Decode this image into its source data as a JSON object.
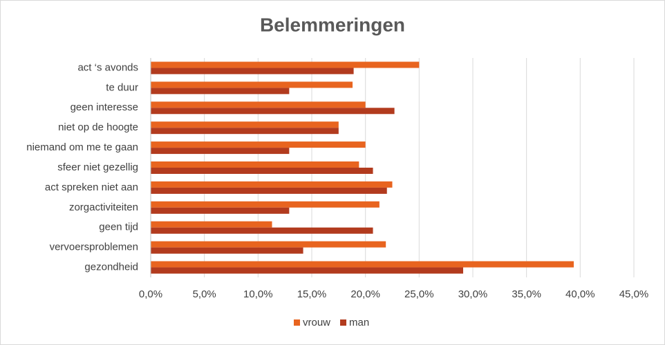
{
  "chart_data": {
    "type": "hbar",
    "title": "Belemmeringen",
    "categories": [
      "act ‘s avonds",
      "te duur",
      "geen interesse",
      "niet op de hoogte",
      "niemand om me te gaan",
      "sfeer niet gezellig",
      "act spreken niet aan",
      "zorgactiviteiten",
      "geen tijd",
      "vervoersproblemen",
      "gezondheid"
    ],
    "series": [
      {
        "name": "vrouw",
        "color": "#e8641f",
        "values": [
          25.0,
          18.8,
          20.0,
          17.5,
          20.0,
          19.4,
          22.5,
          21.3,
          11.3,
          21.9,
          39.4
        ]
      },
      {
        "name": "man",
        "color": "#b23b1e",
        "values": [
          18.9,
          12.9,
          22.7,
          17.5,
          12.9,
          20.7,
          22.0,
          12.9,
          20.7,
          14.2,
          29.1
        ]
      }
    ],
    "xlim": [
      0,
      45
    ],
    "xticks": [
      {
        "value": 0,
        "label": "0,0%"
      },
      {
        "value": 5,
        "label": "5,0%"
      },
      {
        "value": 10,
        "label": "10,0%"
      },
      {
        "value": 15,
        "label": "15,0%"
      },
      {
        "value": 20,
        "label": "20,0%"
      },
      {
        "value": 25,
        "label": "25,0%"
      },
      {
        "value": 30,
        "label": "30,0%"
      },
      {
        "value": 35,
        "label": "35,0%"
      },
      {
        "value": 40,
        "label": "40,0%"
      },
      {
        "value": 45,
        "label": "45,0%"
      }
    ],
    "grid": true,
    "legend": "bottom"
  }
}
